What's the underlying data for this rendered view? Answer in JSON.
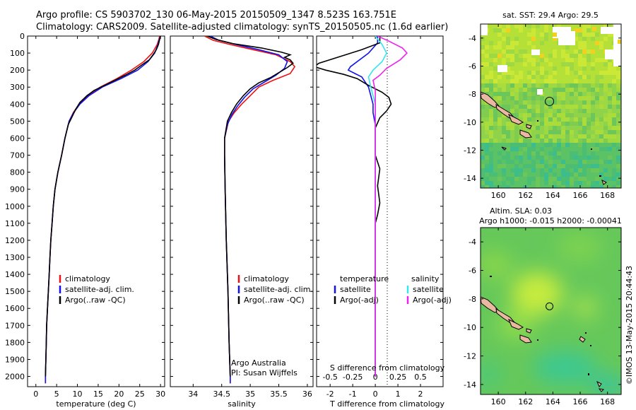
{
  "header": {
    "line1": "Argo profile: CS 5903702_130 06-May-2015 20150509_1347 8.523S 163.751E",
    "line2": "Climatology: CARS2009. Satellite-adjusted climatology: synTS_20150505.nc (1.6d earlier)"
  },
  "footer": {
    "credit": "Argo Australia",
    "pi": "PI: Susan Wijffels",
    "stamp": "©IMOS 13-May-2015 20:44:43"
  },
  "colors": {
    "red": "#ee1111",
    "blue": "#1111ee",
    "black": "#000000",
    "cyan": "#33e6f0",
    "magenta": "#ee22ee"
  },
  "chart_data": [
    {
      "type": "line",
      "xlabel": "temperature (deg C)",
      "xlim": [
        -2,
        31
      ],
      "ylim": [
        2060,
        0
      ],
      "xticks": [
        0,
        5,
        10,
        15,
        20,
        25,
        30
      ],
      "yticks": [
        0,
        100,
        200,
        300,
        400,
        500,
        600,
        700,
        800,
        900,
        1000,
        1100,
        1200,
        1300,
        1400,
        1500,
        1600,
        1700,
        1800,
        1900,
        2000
      ],
      "legend": [
        "climatology",
        "satellite-adj. clim.",
        "Argo(..raw -QC)"
      ],
      "series": [
        {
          "name": "climatology",
          "color": "red",
          "points": [
            [
              29.8,
              0
            ],
            [
              29.6,
              20
            ],
            [
              29.2,
              50
            ],
            [
              28,
              100
            ],
            [
              26,
              150
            ],
            [
              23,
              200
            ],
            [
              19.5,
              250
            ],
            [
              15.5,
              300
            ],
            [
              12.5,
              350
            ],
            [
              10.4,
              400
            ],
            [
              9,
              450
            ],
            [
              8,
              500
            ],
            [
              7,
              600
            ],
            [
              6.2,
              700
            ],
            [
              5.3,
              800
            ],
            [
              4.6,
              900
            ],
            [
              4.2,
              1000
            ],
            [
              3.9,
              1100
            ],
            [
              3.6,
              1200
            ],
            [
              3.4,
              1300
            ],
            [
              3.2,
              1400
            ],
            [
              3,
              1500
            ],
            [
              2.8,
              1600
            ],
            [
              2.6,
              1700
            ],
            [
              2.5,
              1800
            ],
            [
              2.4,
              1900
            ],
            [
              2.3,
              2000
            ],
            [
              2.3,
              2040
            ]
          ]
        },
        {
          "name": "satellite-adj. clim.",
          "color": "blue",
          "points": [
            [
              30,
              0
            ],
            [
              29.7,
              20
            ],
            [
              29.4,
              50
            ],
            [
              28.6,
              100
            ],
            [
              27,
              150
            ],
            [
              24.5,
              200
            ],
            [
              20.5,
              250
            ],
            [
              16,
              300
            ],
            [
              12.8,
              350
            ],
            [
              10.6,
              400
            ],
            [
              9.1,
              450
            ],
            [
              8,
              500
            ],
            [
              7,
              600
            ],
            [
              6.2,
              700
            ],
            [
              5.3,
              800
            ],
            [
              4.6,
              900
            ],
            [
              4.2,
              1000
            ],
            [
              3.9,
              1100
            ],
            [
              3.6,
              1200
            ],
            [
              3.4,
              1300
            ],
            [
              3.2,
              1400
            ],
            [
              3,
              1500
            ],
            [
              2.8,
              1600
            ],
            [
              2.6,
              1700
            ],
            [
              2.5,
              1800
            ],
            [
              2.4,
              1900
            ],
            [
              2.3,
              2000
            ],
            [
              2.3,
              2040
            ]
          ]
        },
        {
          "name": "Argo(..raw -QC)",
          "color": "black",
          "points": [
            [
              30,
              0
            ],
            [
              29.8,
              20
            ],
            [
              29.5,
              50
            ],
            [
              29,
              80
            ],
            [
              28.2,
              110
            ],
            [
              27.3,
              140
            ],
            [
              25.5,
              170
            ],
            [
              23.8,
              200
            ],
            [
              21.5,
              230
            ],
            [
              19,
              260
            ],
            [
              16.5,
              290
            ],
            [
              14,
              320
            ],
            [
              12.3,
              350
            ],
            [
              10.6,
              390
            ],
            [
              9.6,
              430
            ],
            [
              8.6,
              480
            ],
            [
              7.8,
              520
            ],
            [
              7,
              600
            ],
            [
              6.2,
              700
            ],
            [
              5.3,
              800
            ],
            [
              4.6,
              900
            ],
            [
              4.2,
              1000
            ],
            [
              3.9,
              1100
            ],
            [
              3.6,
              1200
            ],
            [
              3.4,
              1300
            ],
            [
              3.2,
              1400
            ],
            [
              3,
              1500
            ],
            [
              2.8,
              1600
            ],
            [
              2.6,
              1700
            ],
            [
              2.5,
              1800
            ],
            [
              2.4,
              1900
            ],
            [
              2.3,
              2000
            ]
          ]
        }
      ]
    },
    {
      "type": "line",
      "xlabel": "salinity",
      "xlim": [
        33.6,
        36.1
      ],
      "ylim": [
        2060,
        0
      ],
      "xticks": [
        34,
        34.5,
        35,
        35.5,
        36
      ],
      "legend": [
        "climatology",
        "satellite-adj. clim.",
        "Argo(..raw -QC)"
      ],
      "series": [
        {
          "name": "climatology",
          "color": "red",
          "points": [
            [
              34.2,
              0
            ],
            [
              34.35,
              25
            ],
            [
              34.65,
              50
            ],
            [
              35.05,
              80
            ],
            [
              35.45,
              110
            ],
            [
              35.7,
              150
            ],
            [
              35.78,
              180
            ],
            [
              35.7,
              220
            ],
            [
              35.4,
              260
            ],
            [
              35.15,
              300
            ],
            [
              35,
              350
            ],
            [
              34.85,
              400
            ],
            [
              34.72,
              450
            ],
            [
              34.62,
              500
            ],
            [
              34.55,
              600
            ],
            [
              34.55,
              700
            ],
            [
              34.56,
              900
            ],
            [
              34.58,
              1200
            ],
            [
              34.61,
              1500
            ],
            [
              34.63,
              1800
            ],
            [
              34.65,
              2000
            ],
            [
              34.65,
              2040
            ]
          ]
        },
        {
          "name": "satellite-adj. clim.",
          "color": "blue",
          "points": [
            [
              34.3,
              0
            ],
            [
              34.45,
              25
            ],
            [
              34.75,
              50
            ],
            [
              35.15,
              80
            ],
            [
              35.5,
              110
            ],
            [
              35.65,
              150
            ],
            [
              35.6,
              190
            ],
            [
              35.45,
              230
            ],
            [
              35.25,
              270
            ],
            [
              35.05,
              310
            ],
            [
              34.9,
              360
            ],
            [
              34.78,
              410
            ],
            [
              34.68,
              460
            ],
            [
              34.6,
              520
            ],
            [
              34.55,
              600
            ],
            [
              34.55,
              700
            ],
            [
              34.56,
              900
            ],
            [
              34.58,
              1200
            ],
            [
              34.61,
              1500
            ],
            [
              34.63,
              1800
            ],
            [
              34.65,
              2000
            ],
            [
              34.65,
              2040
            ]
          ]
        },
        {
          "name": "Argo(..raw -QC)",
          "color": "black",
          "points": [
            [
              34.25,
              0
            ],
            [
              34.4,
              20
            ],
            [
              34.7,
              45
            ],
            [
              35.2,
              70
            ],
            [
              35.55,
              95
            ],
            [
              35.7,
              110
            ],
            [
              35.6,
              125
            ],
            [
              35.7,
              140
            ],
            [
              35.75,
              160
            ],
            [
              35.65,
              185
            ],
            [
              35.5,
              215
            ],
            [
              35.35,
              245
            ],
            [
              35.15,
              275
            ],
            [
              35,
              310
            ],
            [
              34.88,
              350
            ],
            [
              34.76,
              400
            ],
            [
              34.67,
              450
            ],
            [
              34.6,
              500
            ],
            [
              34.55,
              600
            ],
            [
              34.55,
              700
            ],
            [
              34.56,
              900
            ],
            [
              34.58,
              1200
            ],
            [
              34.61,
              1500
            ],
            [
              34.63,
              1800
            ],
            [
              34.65,
              2000
            ]
          ]
        }
      ]
    },
    {
      "type": "line",
      "xlabel": "T difference from climatology",
      "xlabel2": "S difference from climatology",
      "xlim": [
        -2.6,
        3
      ],
      "ylim": [
        2060,
        0
      ],
      "xticks": [
        -2,
        -1,
        0,
        1,
        2
      ],
      "xticks2_labels": [
        "-0.5",
        "-0.25",
        "0",
        "0.25",
        "0.5"
      ],
      "xticks2_pos": [
        -2,
        -1,
        0,
        1,
        2
      ],
      "legend_groups": [
        {
          "title": "temperature",
          "items": [
            "satellite",
            "Argo(-adj)"
          ]
        },
        {
          "title": "salinity",
          "items": [
            "satellite",
            "Argo(-adj)"
          ]
        }
      ],
      "series": [
        {
          "name": "temperature satellite",
          "color": "blue",
          "points": [
            [
              0.1,
              0
            ],
            [
              0.1,
              40
            ],
            [
              -0.3,
              100
            ],
            [
              -1.1,
              180
            ],
            [
              -1.2,
              200
            ],
            [
              -0.9,
              220
            ],
            [
              -0.6,
              240
            ],
            [
              -0.3,
              300
            ],
            [
              -0.2,
              350
            ],
            [
              -0.1,
              400
            ],
            [
              -0.1,
              450
            ],
            [
              0,
              520
            ],
            [
              0,
              600
            ],
            [
              0,
              800
            ],
            [
              0,
              1000
            ],
            [
              0,
              1500
            ],
            [
              0,
              2000
            ]
          ]
        },
        {
          "name": "temperature Argo(-adj)",
          "color": "black",
          "points": [
            [
              0.2,
              0
            ],
            [
              0.2,
              40
            ],
            [
              -0.6,
              80
            ],
            [
              -2.5,
              160
            ],
            [
              -2.7,
              180
            ],
            [
              -2.2,
              200
            ],
            [
              -1.4,
              225
            ],
            [
              -0.8,
              250
            ],
            [
              -0.3,
              290
            ],
            [
              0.3,
              330
            ],
            [
              0.6,
              360
            ],
            [
              0.7,
              400
            ],
            [
              0.5,
              440
            ],
            [
              0.2,
              480
            ],
            [
              0,
              540
            ],
            [
              0,
              700
            ],
            [
              0.2,
              780
            ],
            [
              0.1,
              880
            ],
            [
              0.2,
              980
            ],
            [
              0.1,
              1050
            ],
            [
              0,
              1100
            ],
            [
              0,
              1300
            ],
            [
              0,
              1500
            ],
            [
              0,
              2000
            ]
          ]
        },
        {
          "name": "salinity satellite",
          "color": "cyan",
          "points": [
            [
              0,
              0
            ],
            [
              0.3,
              50
            ],
            [
              0.5,
              100
            ],
            [
              0.3,
              150
            ],
            [
              -0.1,
              200
            ],
            [
              -0.3,
              240
            ],
            [
              -0.2,
              300
            ],
            [
              0,
              400
            ],
            [
              0,
              600
            ],
            [
              0,
              1000
            ],
            [
              0,
              2000
            ]
          ]
        },
        {
          "name": "salinity Argo(-adj)",
          "color": "magenta",
          "points": [
            [
              0.1,
              0
            ],
            [
              0.6,
              30
            ],
            [
              1.2,
              70
            ],
            [
              1.4,
              100
            ],
            [
              1.1,
              140
            ],
            [
              0.5,
              190
            ],
            [
              0.2,
              230
            ],
            [
              -0.1,
              260
            ],
            [
              0,
              320
            ],
            [
              0,
              600
            ],
            [
              0,
              1000
            ],
            [
              0,
              1500
            ],
            [
              0,
              2000
            ]
          ]
        }
      ]
    },
    {
      "type": "heatmap",
      "title": "sat. SST: 29.4 Argo: 29.5",
      "xlim": [
        158.7,
        169
      ],
      "ylim": [
        -14.7,
        -3
      ],
      "xticks": [
        160,
        162,
        164,
        166,
        168
      ],
      "yticks": [
        -4,
        -6,
        -8,
        -10,
        -12,
        -14
      ],
      "marker": [
        163.75,
        -8.52
      ]
    },
    {
      "type": "heatmap",
      "title": "Altim. SLA: 0.03",
      "subtitle": "Argo h1000: -0.015 h2000: -0.00041",
      "xlim": [
        158.7,
        169
      ],
      "ylim": [
        -14.7,
        -3
      ],
      "xticks": [
        160,
        162,
        164,
        166,
        168
      ],
      "yticks": [
        -4,
        -6,
        -8,
        -10,
        -12,
        -14
      ],
      "marker": [
        163.75,
        -8.52
      ]
    }
  ]
}
